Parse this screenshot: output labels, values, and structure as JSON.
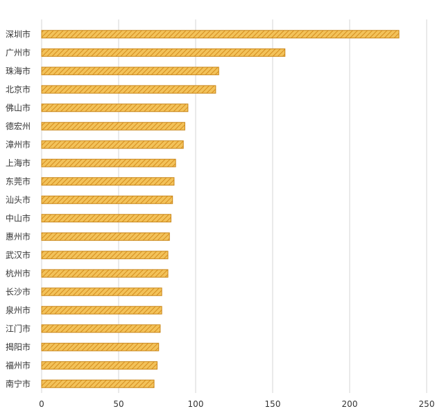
{
  "chart_data": {
    "type": "bar",
    "orientation": "horizontal",
    "categories": [
      "深圳市",
      "广州市",
      "珠海市",
      "北京市",
      "佛山市",
      "德宏州",
      "漳州市",
      "上海市",
      "东莞市",
      "汕头市",
      "中山市",
      "惠州市",
      "武汉市",
      "杭州市",
      "长沙市",
      "泉州市",
      "江门市",
      "揭阳市",
      "福州市",
      "南宁市"
    ],
    "values": [
      232,
      158,
      115,
      113,
      95,
      93,
      92,
      87,
      86,
      85,
      84,
      83,
      82,
      82,
      78,
      78,
      77,
      76,
      75,
      73
    ],
    "xlim": [
      0,
      250
    ],
    "xticks": [
      0,
      50,
      100,
      150,
      200,
      250
    ],
    "title": "",
    "xlabel": "",
    "ylabel": "",
    "grid": "vertical",
    "colors": {
      "bar_fill": "#f2c25a",
      "bar_stripe": "#d68d1e",
      "bar_border": "#c98517",
      "grid": "#d4d4d4"
    }
  }
}
